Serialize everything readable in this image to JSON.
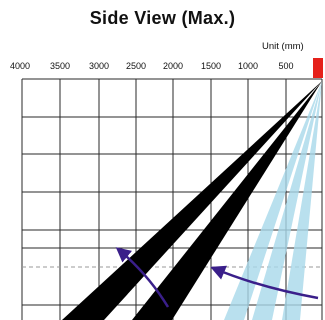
{
  "title": "Side View (Max.)",
  "unit_label": "Unit (mm)",
  "x_axis": {
    "ticks": [
      "4000",
      "3500",
      "3000",
      "2500",
      "2000",
      "1500",
      "1000",
      "500"
    ]
  },
  "colors": {
    "beam_main": "#000000",
    "beam_detection": "#a8d8ea",
    "arrow": "#3a1f8a",
    "sensor": "#e5211b",
    "grid": "#2a2a2a",
    "dashed_line": "#999999"
  }
}
